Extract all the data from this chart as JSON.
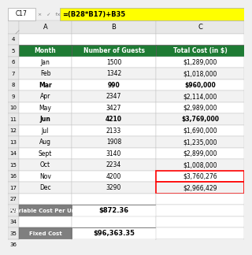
{
  "formula_bar_cell": "C17",
  "formula_bar_text": "=(B28*B17)+B35",
  "header_labels": [
    "Month",
    "Number of Guests",
    "Total Cost (in $)"
  ],
  "header_bg": "#1e7b34",
  "header_text_color": "#ffffff",
  "data_rows": [
    {
      "row": 6,
      "month": "Jan",
      "guests": "1500",
      "cost": "$1,289,000",
      "bold": false,
      "highlight_c": false
    },
    {
      "row": 7,
      "month": "Feb",
      "guests": "1342",
      "cost": "$1,018,000",
      "bold": false,
      "highlight_c": false
    },
    {
      "row": 8,
      "month": "Mar",
      "guests": "990",
      "cost": "$960,000",
      "bold": true,
      "highlight_c": false
    },
    {
      "row": 9,
      "month": "Apr",
      "guests": "2347",
      "cost": "$2,114,000",
      "bold": false,
      "highlight_c": false
    },
    {
      "row": 10,
      "month": "May",
      "guests": "3427",
      "cost": "$2,989,000",
      "bold": false,
      "highlight_c": false
    },
    {
      "row": 11,
      "month": "Jun",
      "guests": "4210",
      "cost": "$3,769,000",
      "bold": true,
      "highlight_c": false
    },
    {
      "row": 12,
      "month": "Jul",
      "guests": "2133",
      "cost": "$1,690,000",
      "bold": false,
      "highlight_c": false
    },
    {
      "row": 13,
      "month": "Aug",
      "guests": "1908",
      "cost": "$1,235,000",
      "bold": false,
      "highlight_c": false
    },
    {
      "row": 14,
      "month": "Sept",
      "guests": "3140",
      "cost": "$2,899,000",
      "bold": false,
      "highlight_c": false
    },
    {
      "row": 15,
      "month": "Oct",
      "guests": "2234",
      "cost": "$1,008,000",
      "bold": false,
      "highlight_c": false
    },
    {
      "row": 16,
      "month": "Nov",
      "guests": "4200",
      "cost": "$3,760,276",
      "bold": false,
      "highlight_c": true
    },
    {
      "row": 17,
      "month": "Dec",
      "guests": "3290",
      "cost": "$2,966,429",
      "bold": false,
      "highlight_c": true
    }
  ],
  "summary_rows": [
    {
      "label": "Variable Cost Per Unit",
      "value": "$872.36",
      "row_num": "28"
    },
    {
      "label": "Fixed Cost",
      "value": "$96,363.35",
      "row_num": "35"
    }
  ],
  "summary_bg": "#7f7f7f",
  "summary_text_color": "#ffffff",
  "cell_border_color": "#c0c0c0",
  "alt_row_color": "#f2f2f2",
  "white_row_color": "#ffffff",
  "highlight_c_color": "#ff0000",
  "formula_bar_bg": "#ffff00",
  "row_num_bg": "#e8e8e8",
  "col_hdr_bg": "#e8e8e8",
  "fig_bg": "#f0f0f0"
}
